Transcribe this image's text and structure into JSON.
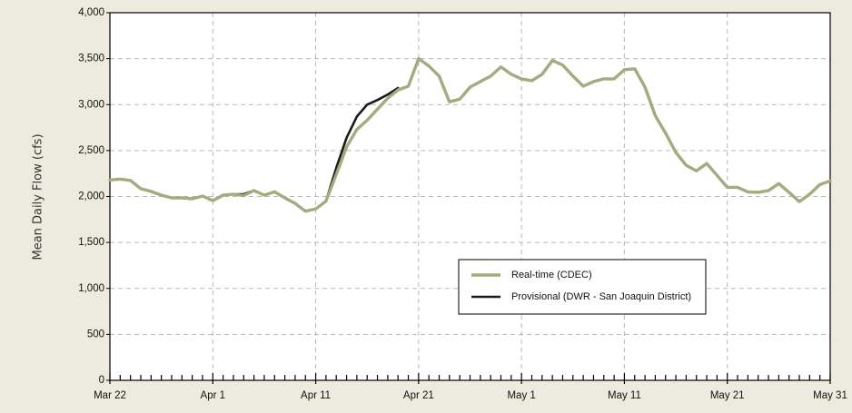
{
  "chart_data": {
    "type": "line",
    "y_axis_label": "Mean Daily Flow (cfs)",
    "categories": [
      "Mar 22",
      null,
      null,
      null,
      null,
      null,
      null,
      null,
      null,
      null,
      "Apr 1",
      null,
      null,
      null,
      null,
      null,
      null,
      null,
      null,
      null,
      "Apr 11",
      null,
      null,
      null,
      null,
      null,
      null,
      null,
      null,
      null,
      "Apr 21",
      null,
      null,
      null,
      null,
      null,
      null,
      null,
      null,
      null,
      "May 1",
      null,
      null,
      null,
      null,
      null,
      null,
      null,
      null,
      null,
      "May 11",
      null,
      null,
      null,
      null,
      null,
      null,
      null,
      null,
      null,
      "May 21",
      null,
      null,
      null,
      null,
      null,
      null,
      null,
      null,
      null,
      "May 31"
    ],
    "series": [
      {
        "name": "Provisional (DWR - San Joaquin District)",
        "color": "#1a1a1a",
        "values": [
          2180,
          2190,
          2175,
          2085,
          2055,
          2015,
          1985,
          1985,
          1975,
          2005,
          1955,
          2015,
          2025,
          2025,
          2065,
          2015,
          2050,
          1985,
          1925,
          1840,
          1865,
          1950,
          2310,
          2640,
          2870,
          3000,
          3050,
          3110,
          3180,
          null,
          null,
          null,
          null,
          null,
          null,
          null,
          null,
          null,
          null,
          null,
          null,
          null,
          null,
          null,
          null,
          null,
          null,
          null,
          null,
          null,
          null,
          null,
          null,
          null,
          null,
          null,
          null,
          null,
          null,
          null,
          null,
          null,
          null,
          null,
          null,
          null,
          null,
          null,
          null,
          null,
          null
        ]
      },
      {
        "name": "Real-time (CDEC)",
        "color": "#a6aa7f",
        "values": [
          2180,
          2190,
          2175,
          2085,
          2055,
          2015,
          1985,
          1985,
          1975,
          2005,
          1955,
          2015,
          2025,
          2010,
          2065,
          2015,
          2050,
          1985,
          1925,
          1840,
          1865,
          1950,
          2240,
          2540,
          2730,
          2830,
          2950,
          3070,
          3160,
          3200,
          3500,
          3420,
          3310,
          3030,
          3060,
          3190,
          3250,
          3310,
          3410,
          3330,
          3280,
          3260,
          3330,
          3480,
          3430,
          3310,
          3200,
          3250,
          3280,
          3280,
          3380,
          3390,
          3190,
          2880,
          2690,
          2480,
          2340,
          2280,
          2360,
          2230,
          2100,
          2100,
          2050,
          2045,
          2065,
          2140,
          2045,
          1945,
          2025,
          2130,
          2170
        ]
      }
    ],
    "ylim": [
      0,
      4000
    ],
    "yticks": [
      0,
      500,
      {
        "value": 1000,
        "label": "1,000"
      },
      {
        "value": 1500,
        "label": "1,500"
      },
      {
        "value": 2000,
        "label": "2,000"
      },
      {
        "value": 2500,
        "label": "2,500"
      },
      {
        "value": 3000,
        "label": "3,000"
      },
      {
        "value": 3500,
        "label": "3,500"
      },
      {
        "value": 4000,
        "label": "4,000"
      }
    ],
    "grid": true,
    "legend": "lower right"
  }
}
